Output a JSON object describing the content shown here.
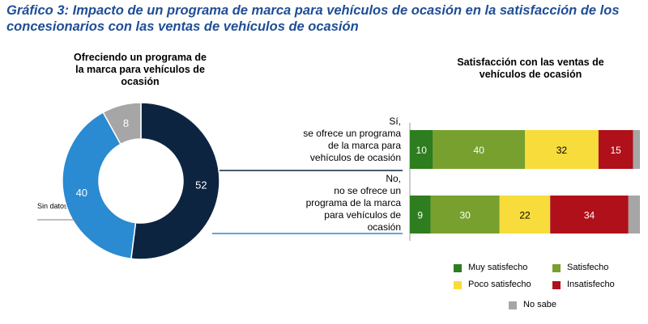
{
  "page": {
    "title": "Gráfico 3: Impacto de un programa de marca para vehículos de ocasión en la satisfacción de los concesionarios con las ventas de vehículos de ocasión"
  },
  "chart_data": [
    {
      "type": "pie",
      "variant": "donut",
      "title": "Ofreciendo un programa de la marca para vehículos de ocasión",
      "slices": [
        {
          "label": "Sí",
          "value": 52,
          "color": "#0d2441"
        },
        {
          "label": "No",
          "value": 40,
          "color": "#2a8ad2"
        },
        {
          "label": "Sin datos",
          "value": 8,
          "color": "#a6a6a6"
        }
      ],
      "annotation": "Sin datos"
    },
    {
      "type": "bar",
      "orientation": "horizontal",
      "stacked": true,
      "title": "Satisfacción con las ventas de vehículos de ocasión",
      "categories": [
        "Sí, se ofrece un programa de la marca para vehículos de ocasión",
        "No, no se ofrece un programa de la marca para vehículos de ocasión"
      ],
      "category_lines": [
        [
          "Sí,",
          "se ofrece un programa",
          "de la marca para",
          "vehículos de ocasión"
        ],
        [
          "No,",
          "no se ofrece un",
          "programa de la marca",
          "para vehículos de",
          "ocasión"
        ]
      ],
      "series": [
        {
          "name": "Muy satisfecho",
          "values": [
            10,
            9
          ],
          "color": "#2e7d1e",
          "labels": [
            "10",
            "9"
          ]
        },
        {
          "name": "Satisfecho",
          "values": [
            40,
            30
          ],
          "color": "#77a02f",
          "labels": [
            "40",
            "30"
          ]
        },
        {
          "name": "Poco satisfecho",
          "values": [
            32,
            22
          ],
          "color": "#f7dc3b",
          "labels": [
            "32",
            "22"
          ]
        },
        {
          "name": "Insatisfecho",
          "values": [
            15,
            34
          ],
          "color": "#b01019",
          "labels": [
            "15",
            "34"
          ]
        },
        {
          "name": "No sabe",
          "values": [
            3,
            5
          ],
          "color": "#a6a6a6",
          "labels": [
            "",
            ""
          ]
        }
      ],
      "legend": [
        "Muy satisfecho",
        "Satisfecho",
        "Poco satisfecho",
        "Insatisfecho",
        "No sabe"
      ]
    }
  ]
}
